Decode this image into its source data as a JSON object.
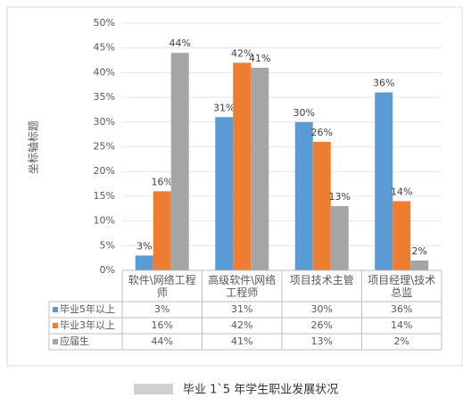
{
  "chart_data": {
    "type": "bar",
    "y_label": "坐标轴标题",
    "caption": "毕业 1`5 年学生职业发展状况",
    "categories": [
      "软件\\网络工程师",
      "高级软件\\网络工程师",
      "项目技术主管",
      "项目经理\\技术总监"
    ],
    "series": [
      {
        "name": "毕业5年以上",
        "color": "#5b9bd5",
        "values": [
          3,
          31,
          30,
          36
        ],
        "value_labels": [
          "3%",
          "31%",
          "30%",
          "36%"
        ]
      },
      {
        "name": "毕业3年以上",
        "color": "#ed7d31",
        "values": [
          16,
          42,
          26,
          14
        ],
        "value_labels": [
          "16%",
          "42%",
          "26%",
          "14%"
        ]
      },
      {
        "name": "应届生",
        "color": "#a5a5a5",
        "values": [
          44,
          41,
          13,
          2
        ],
        "value_labels": [
          "44%",
          "41%",
          "13%",
          "2%"
        ]
      }
    ],
    "ylim": [
      0,
      50
    ],
    "yticks": [
      {
        "value": 0,
        "label": "0%"
      },
      {
        "value": 5,
        "label": "5%"
      },
      {
        "value": 10,
        "label": "10%"
      },
      {
        "value": 15,
        "label": "15%"
      },
      {
        "value": 20,
        "label": "20%"
      },
      {
        "value": 25,
        "label": "25%"
      },
      {
        "value": 30,
        "label": "30%"
      },
      {
        "value": 35,
        "label": "35%"
      },
      {
        "value": 40,
        "label": "40%"
      },
      {
        "value": 45,
        "label": "45%"
      },
      {
        "value": 50,
        "label": "50%"
      }
    ],
    "grid": true
  }
}
